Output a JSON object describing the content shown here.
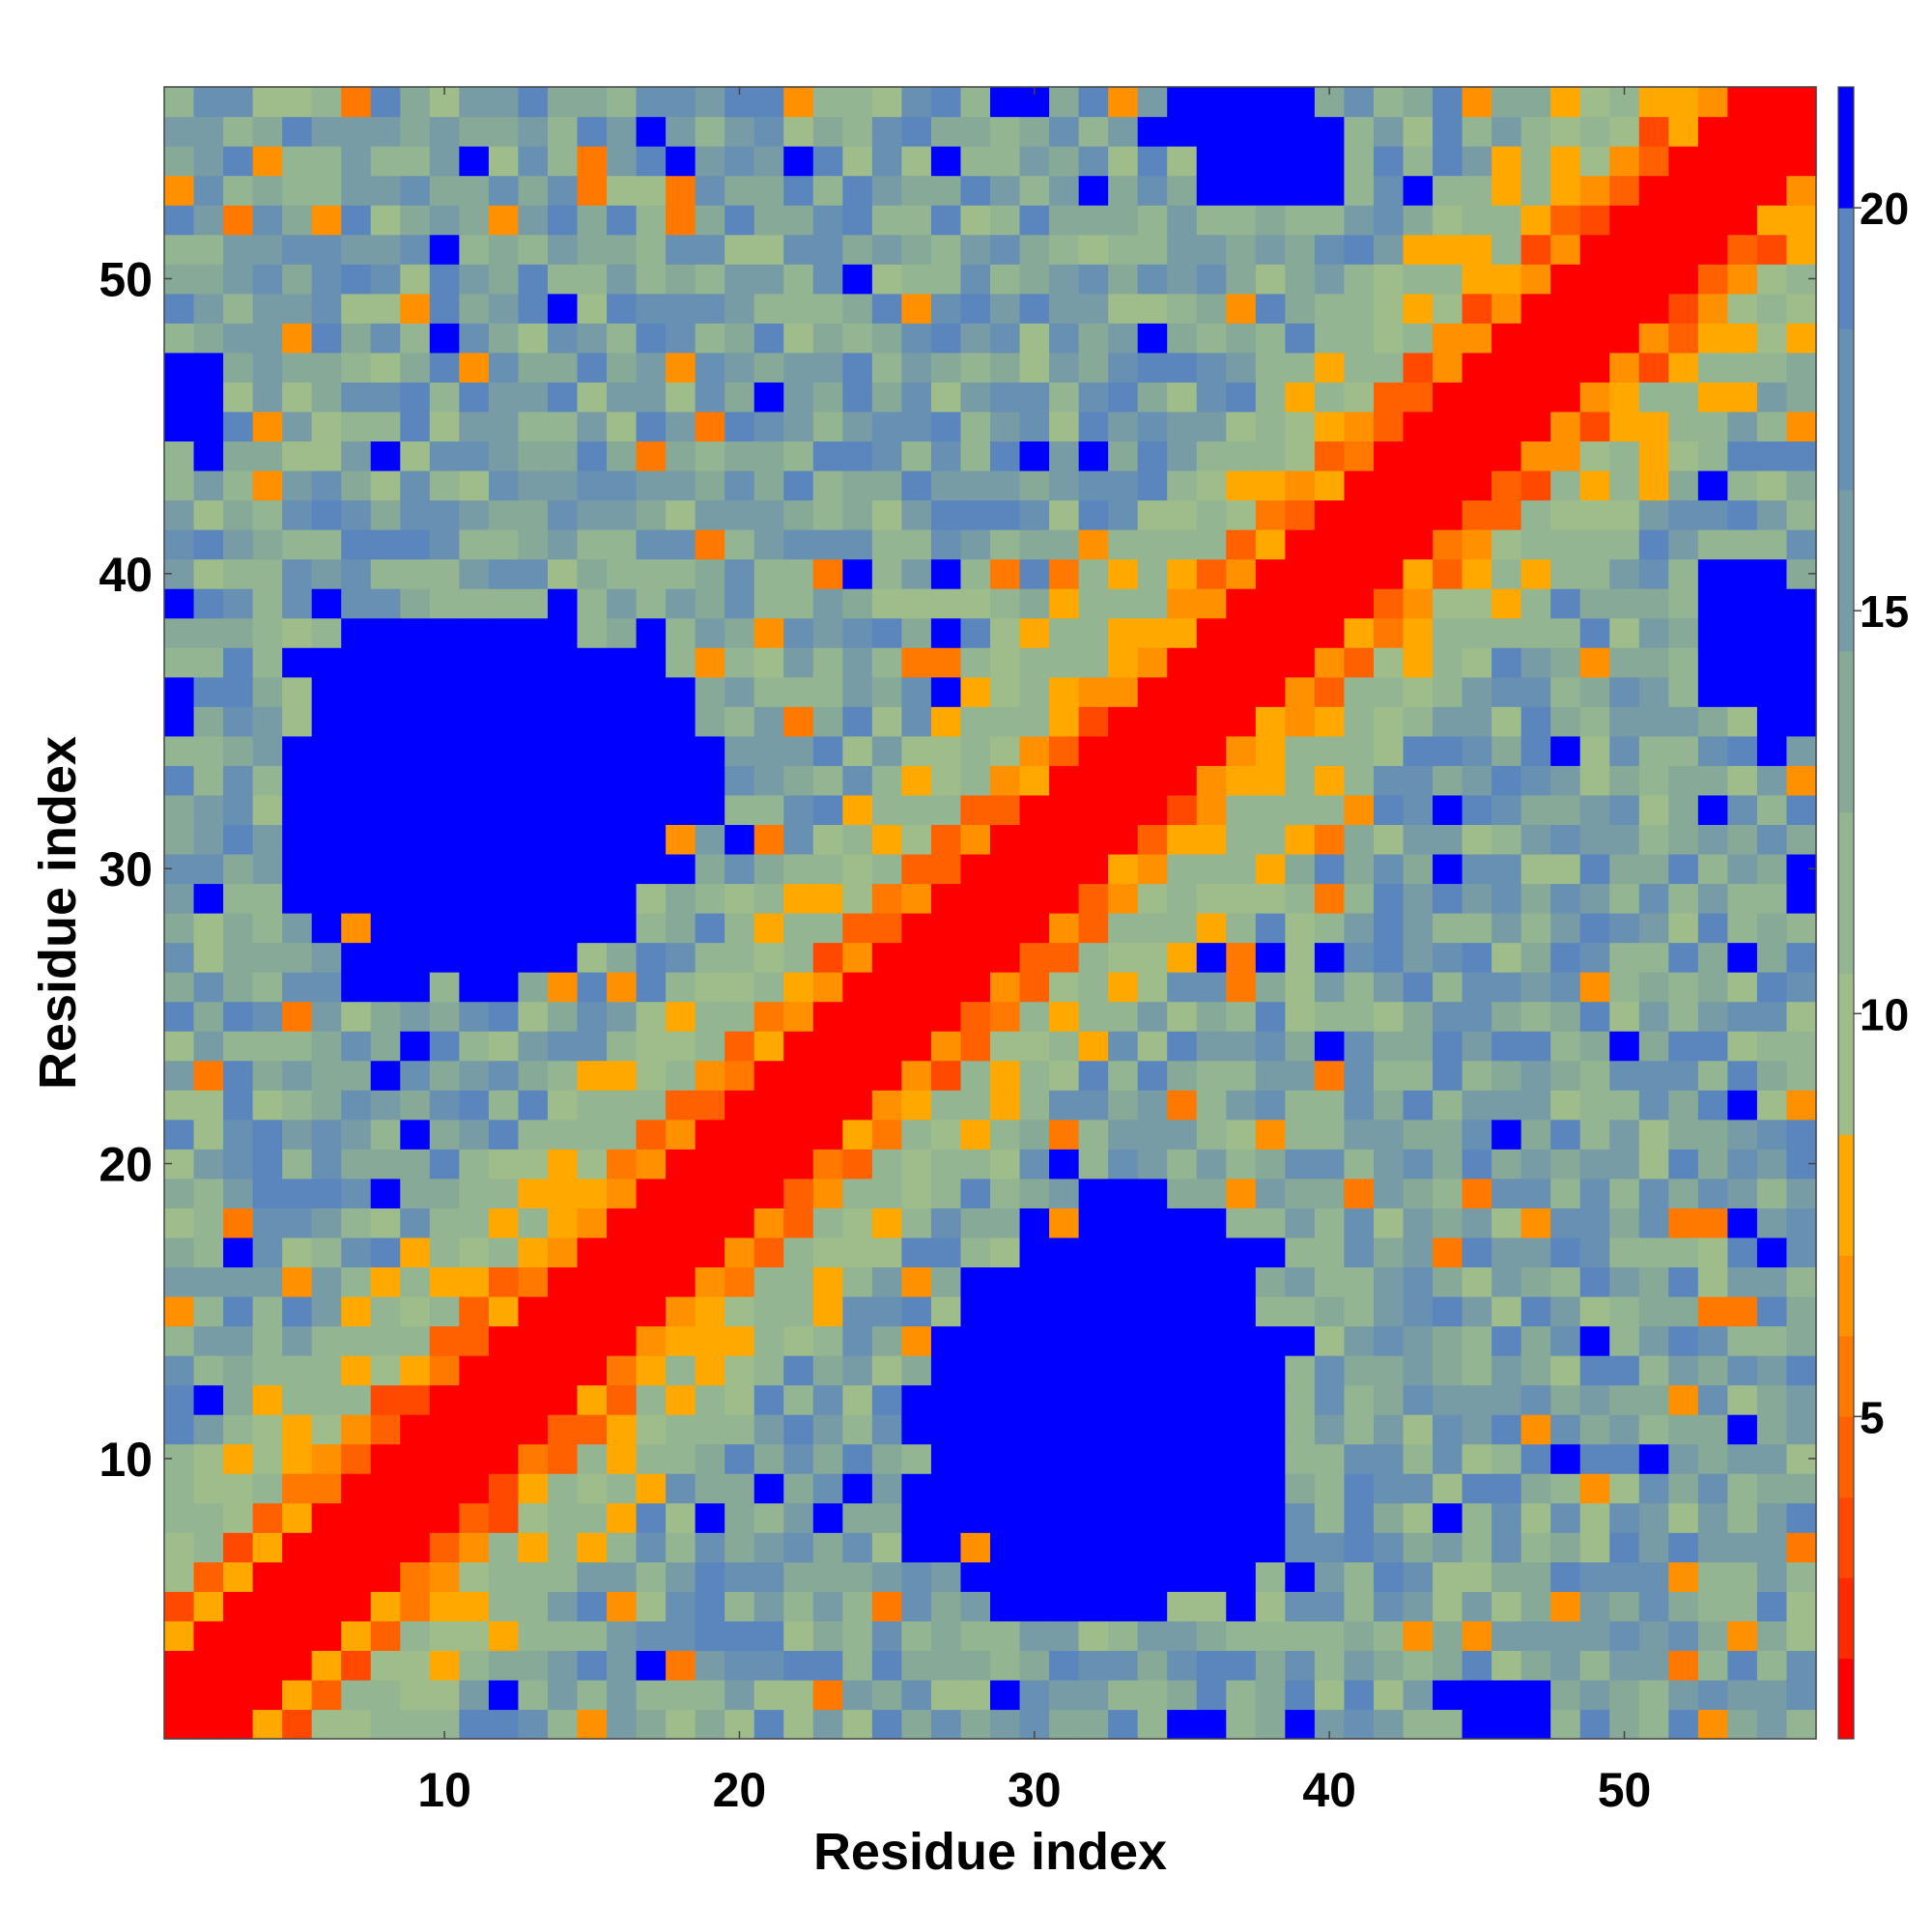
{
  "chart_data": {
    "type": "heatmap",
    "title": "",
    "xlabel": "Residue index",
    "ylabel": "Residue index",
    "n_residues": 56,
    "x_ticks": [
      10,
      20,
      30,
      40,
      50
    ],
    "y_ticks": [
      10,
      20,
      30,
      40,
      50
    ],
    "xlim": [
      0.5,
      56.5
    ],
    "ylim": [
      0.5,
      56.5
    ],
    "grid": false,
    "colorbar": {
      "range": [
        1,
        21.5
      ],
      "ticks": [
        5,
        10,
        15,
        20
      ],
      "placement": "right",
      "bands": [
        {
          "from": 1.0,
          "to": 2.0,
          "color": "#ff0000"
        },
        {
          "from": 2.0,
          "to": 3.0,
          "color": "#ff2a00"
        },
        {
          "from": 3.0,
          "to": 4.0,
          "color": "#ff4800"
        },
        {
          "from": 4.0,
          "to": 5.0,
          "color": "#ff6000"
        },
        {
          "from": 5.0,
          "to": 6.0,
          "color": "#ff7800"
        },
        {
          "from": 6.0,
          "to": 7.0,
          "color": "#ff9000"
        },
        {
          "from": 7.0,
          "to": 8.5,
          "color": "#ffa800"
        },
        {
          "from": 8.5,
          "to": 10.5,
          "color": "#9fbd8a"
        },
        {
          "from": 10.5,
          "to": 12.5,
          "color": "#94b591"
        },
        {
          "from": 12.5,
          "to": 14.5,
          "color": "#86a998"
        },
        {
          "from": 14.5,
          "to": 16.5,
          "color": "#789ca6"
        },
        {
          "from": 16.5,
          "to": 18.5,
          "color": "#6790b3"
        },
        {
          "from": 18.5,
          "to": 20.0,
          "color": "#5b86bd"
        },
        {
          "from": 20.0,
          "to": 21.5,
          "color": "#0000ff"
        }
      ]
    },
    "structure": {
      "diagonal_band": {
        "very_close_max_offset": 2.5,
        "close_max_offset": 4.5
      },
      "high_distance_blocks": [
        {
          "x": [
            4,
            18
          ],
          "y": [
            26,
            39
          ],
          "value": 21
        },
        {
          "x": [
            27,
            39
          ],
          "y": [
            5,
            19
          ],
          "value": 21
        },
        {
          "x": [
            37,
            40
          ],
          "y": [
            53,
            56
          ],
          "value": 21
        },
        {
          "x": [
            54,
            56
          ],
          "y": [
            34,
            40
          ],
          "value": 21
        },
        {
          "x": [
            44,
            47
          ],
          "y": [
            1,
            2
          ],
          "value": 21
        }
      ]
    }
  }
}
